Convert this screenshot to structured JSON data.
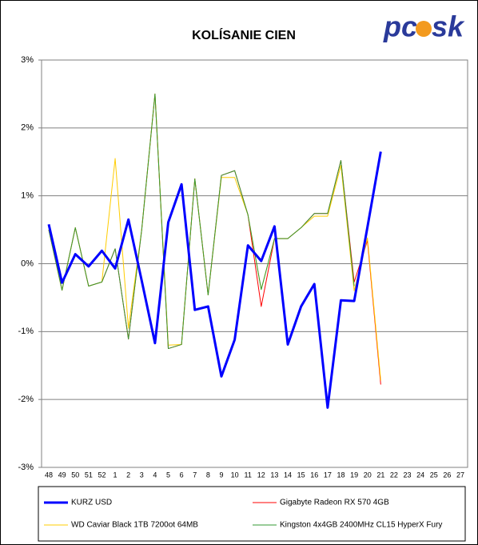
{
  "chart_data": {
    "type": "line",
    "title": "KOLÍSANIE CIEN",
    "logo": [
      "pc",
      "sk"
    ],
    "categories": [
      "48",
      "49",
      "50",
      "51",
      "52",
      "1",
      "2",
      "3",
      "4",
      "5",
      "6",
      "7",
      "8",
      "9",
      "10",
      "11",
      "12",
      "13",
      "14",
      "15",
      "16",
      "17",
      "18",
      "19",
      "20",
      "21",
      "22",
      "23",
      "24",
      "25",
      "26",
      "27"
    ],
    "ylim": [
      -3,
      3
    ],
    "yticks": [
      {
        "value": -3,
        "label": "-3%"
      },
      {
        "value": -2,
        "label": "-2%"
      },
      {
        "value": -1,
        "label": "-1%"
      },
      {
        "value": 0,
        "label": "0%"
      },
      {
        "value": 1,
        "label": "1%"
      },
      {
        "value": 2,
        "label": "2%"
      },
      {
        "value": 3,
        "label": "3%"
      }
    ],
    "grid": true,
    "series": [
      {
        "name": "KURZ USD",
        "color": "#0000ff",
        "values": [
          0.58,
          -0.28,
          0.14,
          -0.04,
          0.19,
          -0.07,
          0.65,
          -0.25,
          -1.17,
          0.61,
          1.17,
          -0.68,
          -0.63,
          -1.66,
          -1.12,
          0.27,
          0.04,
          0.55,
          -1.19,
          -0.63,
          -0.3,
          -2.12,
          -0.54,
          -0.55,
          0.54,
          1.65,
          null,
          null,
          null,
          null,
          null,
          null
        ]
      },
      {
        "name": "Gigabyte Radeon RX 570 4GB",
        "color": "#ff0000",
        "values": [
          0.5,
          -0.39,
          0.53,
          -0.33,
          -0.27,
          0.22,
          -1.11,
          0.5,
          2.5,
          -1.25,
          -1.19,
          1.25,
          -0.46,
          1.3,
          1.37,
          0.72,
          -0.63,
          0.37,
          0.37,
          0.53,
          0.74,
          0.74,
          1.52,
          -0.27,
          0.34,
          -1.78,
          null,
          null,
          null,
          null,
          null,
          null
        ]
      },
      {
        "name": "WD Caviar Black 1TB 7200ot 64MB",
        "color": "#ffcc00",
        "values": [
          0.5,
          -0.39,
          0.53,
          -0.33,
          -0.27,
          1.55,
          -0.95,
          0.5,
          2.5,
          -1.2,
          -1.19,
          1.25,
          -0.46,
          1.27,
          1.27,
          0.72,
          -0.38,
          0.37,
          0.37,
          0.53,
          0.7,
          0.7,
          1.45,
          -0.4,
          0.38,
          -1.72,
          null,
          null,
          null,
          null,
          null,
          null
        ]
      },
      {
        "name": "Kingston 4x4GB 2400MHz CL15 HyperX Fury",
        "color": "#339933",
        "values": [
          0.5,
          -0.39,
          0.53,
          -0.33,
          -0.27,
          0.22,
          -1.11,
          0.5,
          2.5,
          -1.25,
          -1.19,
          1.25,
          -0.46,
          1.3,
          1.37,
          0.72,
          -0.38,
          0.37,
          0.37,
          0.53,
          0.74,
          0.74,
          1.52,
          -0.33,
          null,
          null,
          null,
          null,
          null,
          null,
          null,
          null
        ]
      }
    ]
  }
}
